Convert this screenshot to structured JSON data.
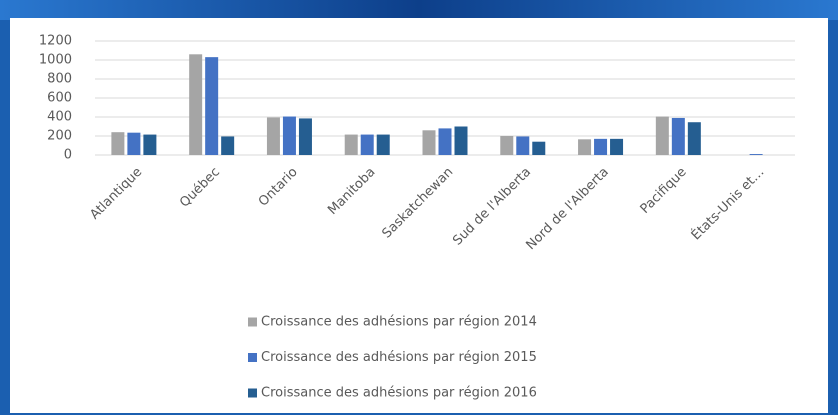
{
  "chart_data": {
    "type": "bar",
    "categories": [
      "Atlantique",
      "Québec",
      "Ontario",
      "Manitoba",
      "Saskatchewan",
      "Sud de l'Alberta",
      "Nord de l'Alberta",
      "Pacifique",
      "États-Unis et…"
    ],
    "series": [
      {
        "name": "Croissance des adhésions par région 2014",
        "color": "#a5a5a5",
        "values": [
          240,
          1060,
          395,
          215,
          260,
          200,
          165,
          405,
          0
        ]
      },
      {
        "name": "Croissance des adhésions par région 2015",
        "color": "#4472c4",
        "values": [
          235,
          1030,
          405,
          215,
          280,
          195,
          170,
          390,
          10
        ]
      },
      {
        "name": "Croissance des adhésions par région 2016",
        "color": "#255e91",
        "values": [
          215,
          195,
          385,
          215,
          300,
          140,
          170,
          345,
          0
        ]
      }
    ],
    "ylim": [
      0,
      1200
    ],
    "yticks": [
      0,
      200,
      400,
      600,
      800,
      1000,
      1200
    ],
    "grid": true,
    "legend": "bottom"
  }
}
